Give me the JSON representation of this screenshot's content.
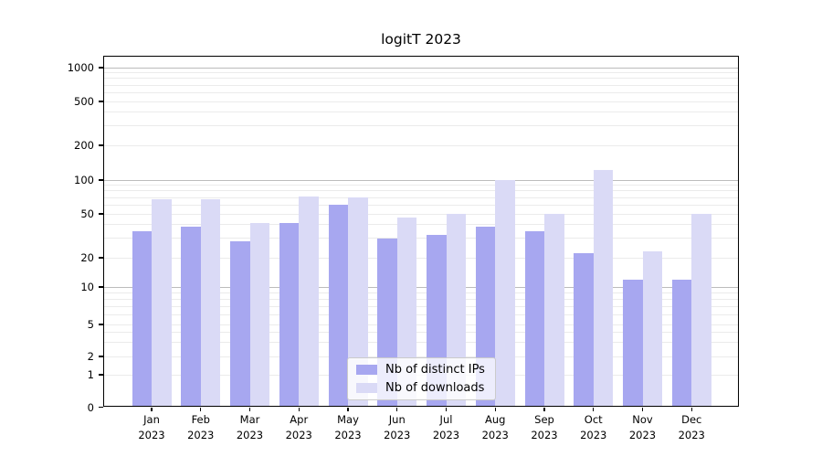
{
  "chart_data": {
    "type": "bar",
    "title": "logitT 2023",
    "categories": [
      "Jan 2023",
      "Feb 2023",
      "Mar 2023",
      "Apr 2023",
      "May 2023",
      "Jun 2023",
      "Jul 2023",
      "Aug 2023",
      "Sep 2023",
      "Oct 2023",
      "Nov 2023",
      "Dec 2023"
    ],
    "series": [
      {
        "name": "Nb of distinct IPs",
        "color": "#a7a7f0",
        "values": [
          35,
          38,
          28,
          41,
          60,
          30,
          32,
          38,
          35,
          22,
          12,
          12
        ]
      },
      {
        "name": "Nb of downloads",
        "color": "#dadaf6",
        "values": [
          67,
          68,
          41,
          72,
          70,
          46,
          50,
          100,
          50,
          123,
          23,
          50
        ]
      }
    ],
    "xlabel": "",
    "ylabel": "",
    "yscale": "symlog",
    "yticks": [
      0,
      1,
      2,
      5,
      10,
      20,
      50,
      100,
      200,
      500,
      1000
    ],
    "ylim": [
      0,
      1275
    ],
    "grid": "horizontal log minor gridlines on",
    "legend_position": "lower center",
    "colors": {
      "decade_gridline": "#bcbcbc",
      "minor_gridline": "#ebebeb",
      "axis": "#000000",
      "background": "#ffffff"
    }
  }
}
